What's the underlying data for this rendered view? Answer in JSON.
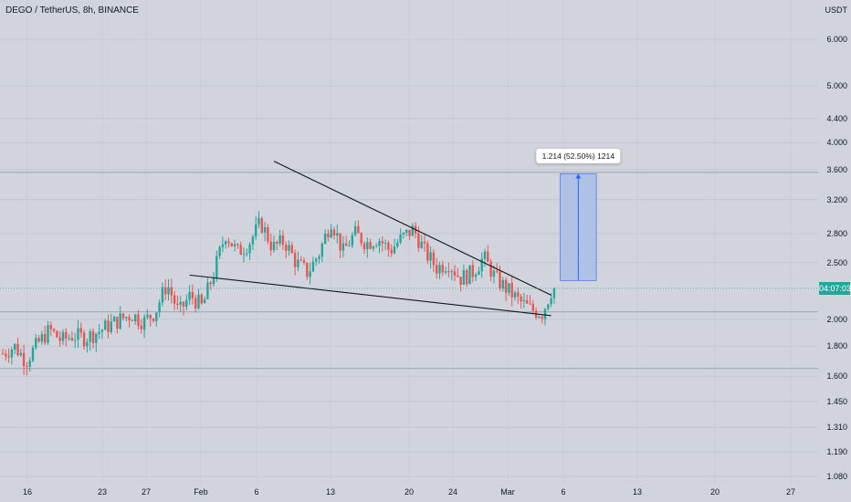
{
  "header": {
    "title": "DEGO / TetherUS, 8h, BINANCE"
  },
  "price_axis": {
    "currency": "USDT",
    "ticks": [
      "6.000",
      "5.000",
      "4.400",
      "4.000",
      "3.600",
      "3.200",
      "2.800",
      "2.500",
      "2.000",
      "1.800",
      "1.600",
      "1.450",
      "1.310",
      "1.190",
      "1.080"
    ]
  },
  "time_axis": {
    "ticks": [
      "16",
      "23",
      "27",
      "Feb",
      "6",
      "13",
      "20",
      "24",
      "Mar",
      "6",
      "13",
      "20",
      "27"
    ]
  },
  "current_price": {
    "countdown": "04:07:03",
    "color": "#26a69a"
  },
  "horizontal_levels": [
    3.56,
    2.06,
    1.65
  ],
  "measure_tool": {
    "label": "1.214 (52.50%) 1214",
    "from_price": 2.33,
    "to_price": 3.54,
    "fill": "#a9bde6",
    "stroke": "#2962ff"
  },
  "colors": {
    "up": "#26a69a",
    "down": "#ef5350",
    "background": "#d1d4dc",
    "trendline": "#131722"
  },
  "chart_data": {
    "type": "candlestick",
    "symbol": "DEGO / TetherUS",
    "interval": "8h",
    "exchange": "BINANCE",
    "y_scale": "log",
    "ylim": [
      1.05,
      7.0
    ],
    "close_path": [
      1.75,
      1.8,
      1.7,
      1.82,
      1.92,
      1.84,
      1.88,
      1.86,
      1.9,
      1.95,
      2.0,
      2.04,
      1.98,
      2.06,
      2.3,
      2.05,
      2.2,
      2.1,
      2.4,
      2.8,
      2.6,
      2.7,
      2.92,
      2.65,
      2.72,
      2.5,
      2.4,
      2.6,
      2.95,
      2.6,
      2.8,
      2.7,
      2.75,
      2.62,
      2.75,
      2.85,
      2.6,
      2.45,
      2.5,
      2.35,
      2.4,
      2.55,
      2.35,
      2.25,
      2.15,
      2.08,
      2.05,
      2.3
    ],
    "notes": "Approximately 175 eight-hour candles, beginning in mid-January; the final candle is at about 2.26 USDT, close to the start of March",
    "trendlines": [
      {
        "name": "upper",
        "from": {
          "index": 90,
          "price": 3.72
        },
        "to": {
          "index": 182,
          "price": 2.2
        }
      },
      {
        "name": "lower",
        "from": {
          "index": 62,
          "price": 2.38
        },
        "to": {
          "index": 182,
          "price": 2.03
        }
      }
    ]
  }
}
